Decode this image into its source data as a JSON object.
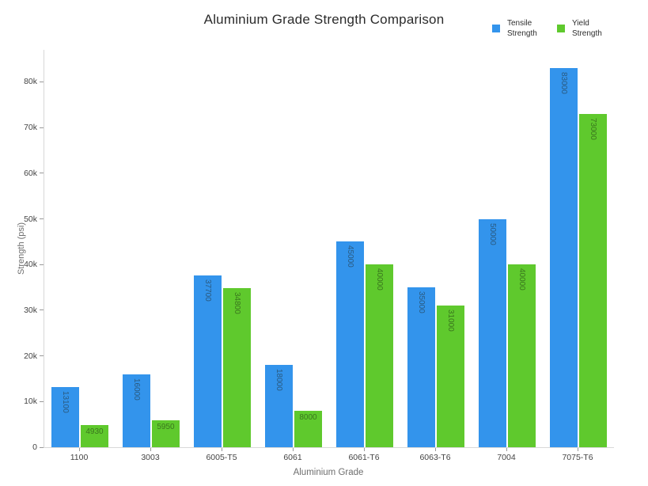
{
  "chart_data": {
    "type": "bar",
    "title": "Aluminium Grade Strength Comparison",
    "xlabel": "Aluminium Grade",
    "ylabel": "Strength (psi)",
    "categories": [
      "1100",
      "3003",
      "6005-T5",
      "6061",
      "6061-T6",
      "6063-T6",
      "7004",
      "7075-T6"
    ],
    "series": [
      {
        "name": "Tensile Strength",
        "color": "#3394ec",
        "label_color": "#2a5a80",
        "values": [
          13100,
          16000,
          37700,
          18000,
          45000,
          35000,
          50000,
          83000
        ]
      },
      {
        "name": "Yield Strength",
        "color": "#5fc92d",
        "label_color": "#3a771e",
        "values": [
          4930,
          5950,
          34800,
          8000,
          40000,
          31000,
          40000,
          73000
        ]
      }
    ],
    "ylim": [
      0,
      87000
    ],
    "yticks": [
      {
        "value": 0,
        "label": "0"
      },
      {
        "value": 10000,
        "label": "10k"
      },
      {
        "value": 20000,
        "label": "20k"
      },
      {
        "value": 30000,
        "label": "30k"
      },
      {
        "value": 40000,
        "label": "40k"
      },
      {
        "value": 50000,
        "label": "50k"
      },
      {
        "value": 60000,
        "label": "60k"
      },
      {
        "value": 70000,
        "label": "70k"
      },
      {
        "value": 80000,
        "label": "80k"
      }
    ],
    "grid": false,
    "legend_position": "top-right",
    "bar_value_labels": "inside-top",
    "background_color": "#ffffff",
    "axis_line_color": "#d8d8d8",
    "tick_color": "#999999"
  }
}
